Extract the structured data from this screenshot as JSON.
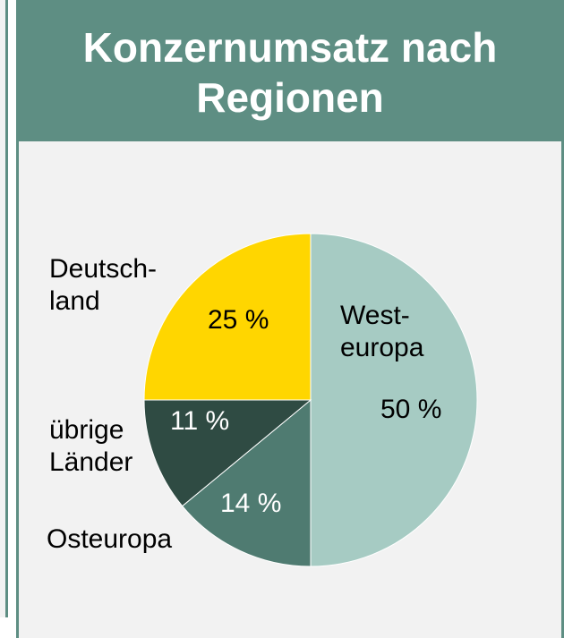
{
  "chart_data": {
    "type": "pie",
    "title": "Konzernumsatz nach Regionen",
    "categories": [
      "West-\neuropa",
      "Osteuropa",
      "übrige\nLänder",
      "Deutsch-\nland"
    ],
    "values": [
      50,
      14,
      11,
      25
    ],
    "value_labels": [
      "50 %",
      "14 %",
      "11 %",
      "25 %"
    ],
    "colors": [
      "#a6cbc3",
      "#4f7b71",
      "#2f4b43",
      "#ffd600"
    ]
  }
}
